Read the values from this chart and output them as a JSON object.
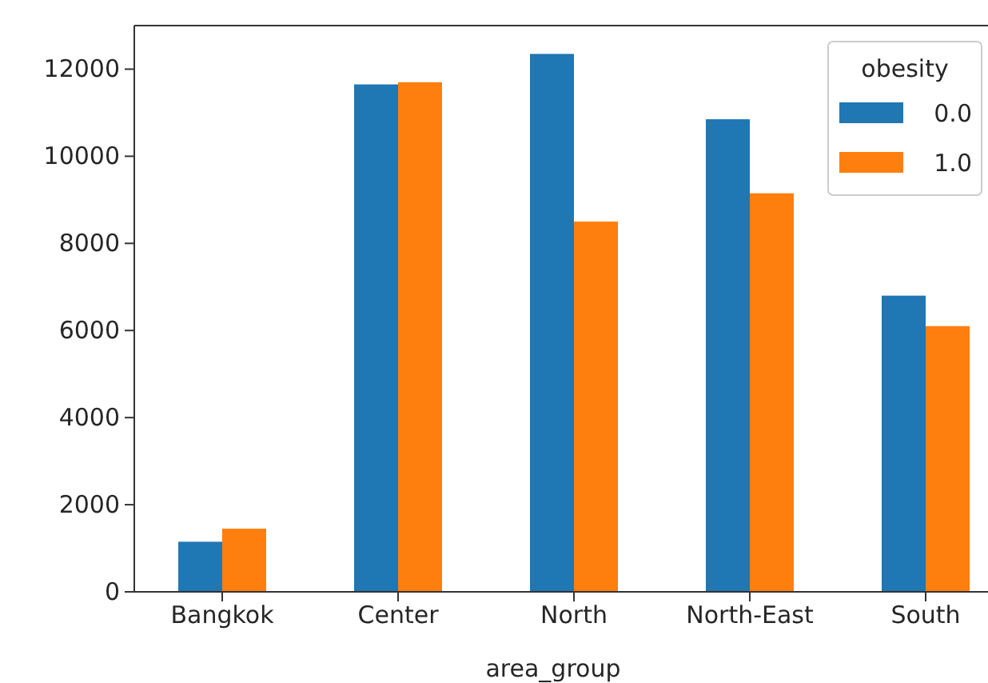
{
  "chart_data": {
    "type": "bar",
    "xlabel": "area_group",
    "legend_title": "obesity",
    "legend": "top right",
    "categories": [
      "Bangkok",
      "Center",
      "North",
      "North-East",
      "South"
    ],
    "series": [
      {
        "name": "0.0",
        "color": "#1f77b4",
        "values": [
          1150,
          11650,
          12350,
          10850,
          6800
        ]
      },
      {
        "name": "1.0",
        "color": "#ff7f0e",
        "values": [
          1450,
          11700,
          8500,
          9150,
          6100
        ]
      }
    ],
    "ylim": [
      0,
      13000
    ],
    "yticks": [
      0,
      2000,
      4000,
      6000,
      8000,
      10000,
      12000
    ]
  }
}
